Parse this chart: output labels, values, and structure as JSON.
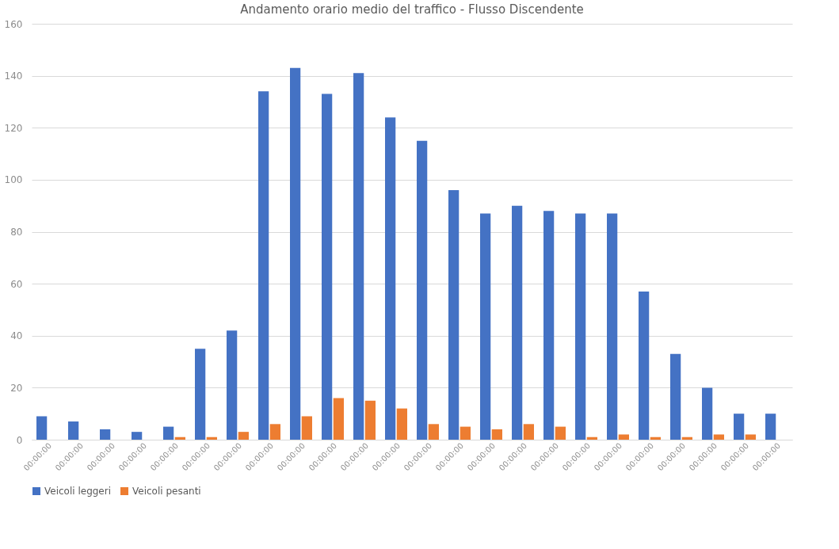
{
  "chart_data": {
    "type": "bar",
    "title": "Andamento orario medio del traffico - Flusso Discendente",
    "categories": [
      "00:00:00",
      "00:00:00",
      "00:00:00",
      "00:00:00",
      "00:00:00",
      "00:00:00",
      "00:00:00",
      "00:00:00",
      "00:00:00",
      "00:00:00",
      "00:00:00",
      "00:00:00",
      "00:00:00",
      "00:00:00",
      "00:00:00",
      "00:00:00",
      "00:00:00",
      "00:00:00",
      "00:00:00",
      "00:00:00",
      "00:00:00",
      "00:00:00",
      "00:00:00",
      "00:00:00"
    ],
    "series": [
      {
        "name": "Veicoli leggeri",
        "color": "#4472c4",
        "values": [
          9,
          7,
          4,
          3,
          5,
          35,
          42,
          134,
          143,
          133,
          141,
          124,
          115,
          96,
          87,
          90,
          88,
          87,
          87,
          57,
          33,
          20,
          10,
          10
        ]
      },
      {
        "name": "Veicoli pesanti",
        "color": "#ed7d31",
        "values": [
          null,
          null,
          null,
          null,
          1,
          1,
          3,
          6,
          9,
          16,
          15,
          12,
          6,
          5,
          4,
          6,
          5,
          1,
          2,
          1,
          1,
          2,
          2,
          null
        ]
      }
    ],
    "ylim": [
      0,
      160
    ],
    "yticks": [
      0,
      20,
      40,
      60,
      80,
      100,
      120,
      140,
      160
    ],
    "grid": "y",
    "legend": "bottom"
  }
}
